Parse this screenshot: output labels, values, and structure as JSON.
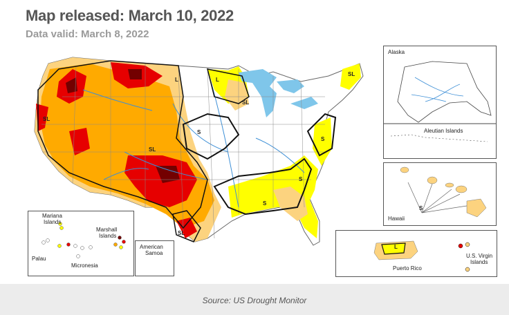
{
  "header": {
    "title": "Map released: March 10, 2022",
    "subtitle": "Data valid: March 8, 2022"
  },
  "map": {
    "impact_labels": {
      "sl": "SL",
      "s": "S",
      "l": "L"
    },
    "insets": {
      "alaska": "Alaska",
      "aleutian": "Aleutian Islands",
      "hawaii": "Hawaii",
      "puerto_rico": "Puerto Rico",
      "virgin_islands_1": "U.S. Virgin",
      "virgin_islands_2": "Islands",
      "mariana_1": "Mariana",
      "mariana_2": "Islands",
      "marshall_1": "Marshall",
      "marshall_2": "Islands",
      "palau": "Palau",
      "micronesia": "Micronesia",
      "samoa_1": "American",
      "samoa_2": "Samoa"
    },
    "colors": {
      "abnormally_dry": "#ffff00",
      "moderate": "#fcd37f",
      "severe": "#ffaa00",
      "extreme": "#e60000",
      "exceptional": "#730000",
      "water": "#7fc6ea",
      "outline": "#111111"
    }
  },
  "footer": {
    "source": "Source: US Drought Monitor"
  }
}
